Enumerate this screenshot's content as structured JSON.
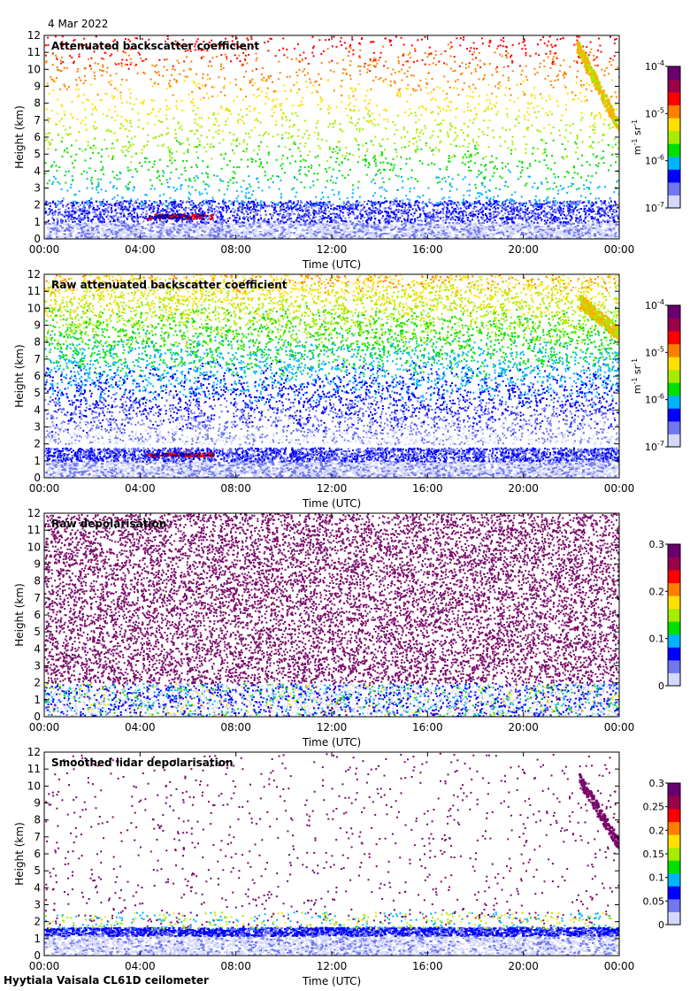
{
  "figure": {
    "date": "4 Mar 2022",
    "footer": "Hyytiala Vaisala CL61D ceilometer"
  },
  "colors": {
    "colormap": [
      "#ffffff",
      "#d4d8fb",
      "#6f78f0",
      "#0000ff",
      "#00b4ff",
      "#00e000",
      "#a6ec00",
      "#ffe000",
      "#ff8000",
      "#ff0000",
      "#9c0049",
      "#6a0070"
    ]
  },
  "chart_data": [
    {
      "type": "heatmap",
      "name": "backscatter",
      "title": "Attenuated backscatter coefficient",
      "xlabel": "Time (UTC)",
      "ylabel": "Height (km)",
      "xticks": [
        "00:00",
        "04:00",
        "08:00",
        "12:00",
        "16:00",
        "20:00",
        "00:00"
      ],
      "yticks": [
        "0",
        "1",
        "2",
        "3",
        "4",
        "5",
        "6",
        "7",
        "8",
        "9",
        "10",
        "11",
        "12"
      ],
      "xlim_hours": [
        0,
        24
      ],
      "ylim_km": [
        0,
        12
      ],
      "colorbar": {
        "scale": "log",
        "range": [
          1e-07,
          0.0001
        ],
        "label_base": "m",
        "label_exp1": "-1",
        "label_mid": " sr",
        "label_exp2": "-1",
        "ticks": [
          {
            "base": "10",
            "exp": "-4"
          },
          {
            "base": "10",
            "exp": "-5"
          },
          {
            "base": "10",
            "exp": "-6"
          },
          {
            "base": "10",
            "exp": "-7"
          }
        ]
      },
      "features": {
        "boundary_layer_top_km": 1.7,
        "aerosol_layer_km": [
          1.2,
          1.5
        ],
        "aerosol_layer_hours": [
          4.3,
          7.0
        ],
        "cloud_hours": [
          22.2,
          24.0
        ],
        "cloud_km": [
          6.5,
          11.5
        ],
        "upper_noise_level": "sparse"
      }
    },
    {
      "type": "heatmap",
      "name": "raw-backscatter",
      "title": "Raw attenuated backscatter coefficient",
      "xlabel": "Time (UTC)",
      "ylabel": "Height (km)",
      "xticks": [
        "00:00",
        "04:00",
        "08:00",
        "12:00",
        "16:00",
        "20:00",
        "00:00"
      ],
      "yticks": [
        "0",
        "1",
        "2",
        "3",
        "4",
        "5",
        "6",
        "7",
        "8",
        "9",
        "10",
        "11",
        "12"
      ],
      "xlim_hours": [
        0,
        24
      ],
      "ylim_km": [
        0,
        12
      ],
      "colorbar": {
        "scale": "log",
        "range": [
          1e-07,
          0.0001
        ],
        "label_base": "m",
        "label_exp1": "-1",
        "label_mid": " sr",
        "label_exp2": "-1",
        "ticks": [
          {
            "base": "10",
            "exp": "-4"
          },
          {
            "base": "10",
            "exp": "-5"
          },
          {
            "base": "10",
            "exp": "-6"
          },
          {
            "base": "10",
            "exp": "-7"
          }
        ]
      },
      "features": {
        "boundary_layer_top_km": 1.2,
        "aerosol_layer_km": [
          1.3,
          1.5
        ],
        "aerosol_layer_hours": [
          4.2,
          7.0
        ],
        "cloud_hours": [
          22.3,
          24.0
        ],
        "cloud_km": [
          8.5,
          10.5
        ],
        "upper_noise_level": "dense"
      }
    },
    {
      "type": "heatmap",
      "name": "raw-depolarisation",
      "title": "Raw depolarisation",
      "xlabel": "Time (UTC)",
      "ylabel": "Height (km)",
      "xticks": [
        "00:00",
        "04:00",
        "08:00",
        "12:00",
        "16:00",
        "20:00",
        "00:00"
      ],
      "yticks": [
        "0",
        "1",
        "2",
        "3",
        "4",
        "5",
        "6",
        "7",
        "8",
        "9",
        "10",
        "11",
        "12"
      ],
      "xlim_hours": [
        0,
        24
      ],
      "ylim_km": [
        0,
        12
      ],
      "colorbar": {
        "scale": "linear",
        "range": [
          0,
          0.3
        ],
        "ticks": [
          "0.3",
          "0.2",
          "0.1",
          "0"
        ]
      },
      "features": {
        "low_layer_km": [
          0.3,
          2.0
        ],
        "upper_fill": "purple-noise"
      }
    },
    {
      "type": "heatmap",
      "name": "smoothed-depolarisation",
      "title": "Smoothed lidar depolarisation",
      "xlabel": "Time (UTC)",
      "ylabel": "Height (km)",
      "xticks": [
        "00:00",
        "04:00",
        "08:00",
        "12:00",
        "16:00",
        "20:00",
        "00:00"
      ],
      "yticks": [
        "0",
        "1",
        "2",
        "3",
        "4",
        "5",
        "6",
        "7",
        "8",
        "9",
        "10",
        "11",
        "12"
      ],
      "xlim_hours": [
        0,
        24
      ],
      "ylim_km": [
        0,
        12
      ],
      "colorbar": {
        "scale": "linear",
        "range": [
          0,
          0.3
        ],
        "ticks": [
          "0.3",
          "0.25",
          "0.2",
          "0.15",
          "0.1",
          "0.05",
          "0"
        ]
      },
      "features": {
        "layer_km": [
          1.2,
          1.7
        ],
        "cloud_hours": [
          22.3,
          24.0
        ],
        "cloud_km": [
          6.5,
          10.5
        ],
        "upper_fill": "sparse-purple"
      }
    }
  ]
}
